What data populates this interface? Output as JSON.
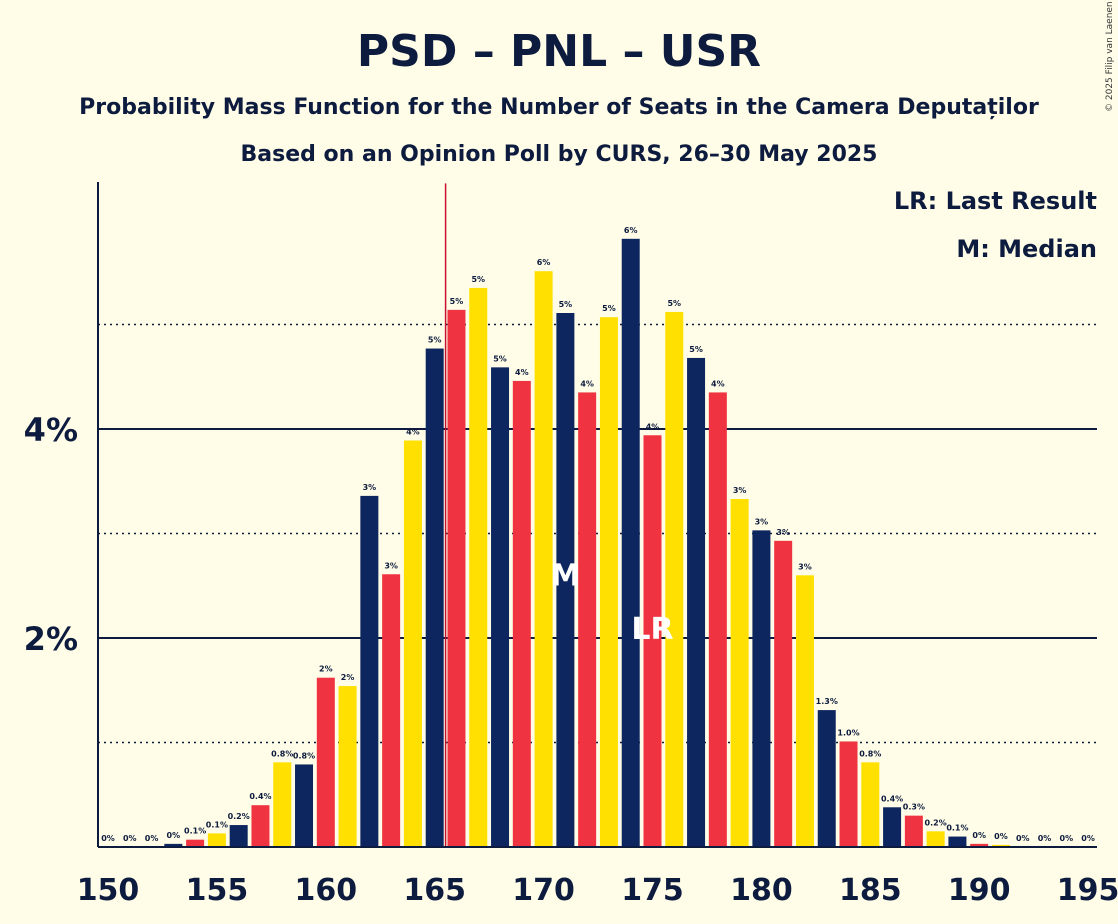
{
  "copyright": "© 2025 Filip van Laenen",
  "chart_data": {
    "type": "bar",
    "title": "PSD – PNL – USR",
    "subtitle": "Probability Mass Function for the Number of Seats in the Camera Deputaților",
    "subtitle2": "Based on an Opinion Poll by CURS, 26–30 May 2025",
    "xlabel": "",
    "ylabel": "",
    "x_range": [
      150,
      195
    ],
    "ylim": [
      0,
      6.35
    ],
    "x_ticks": [
      150,
      155,
      160,
      165,
      170,
      175,
      180,
      185,
      190,
      195
    ],
    "x_tick_labels": [
      "150",
      "155",
      "160",
      "165",
      "170",
      "175",
      "180",
      "185",
      "190",
      "195"
    ],
    "y_ticks": [
      2,
      4
    ],
    "y_tick_labels": [
      "2%",
      "4%"
    ],
    "y_dotted": [
      1,
      3,
      5
    ],
    "grid": true,
    "colors": [
      "#0D2660",
      "#EF3340",
      "#FFE000"
    ],
    "last_result_line": {
      "seats": 165.5,
      "color": "#C8102E"
    },
    "legend": {
      "position": "top-right",
      "entries": [
        "LR: Last Result",
        "M: Median"
      ]
    },
    "median": {
      "seats": 171,
      "label": "M"
    },
    "last_result": {
      "seats": 175,
      "label": "LR"
    },
    "bars": [
      {
        "seats": 150,
        "value": 0.0,
        "label": "0%"
      },
      {
        "seats": 151,
        "value": 0.0,
        "label": "0%"
      },
      {
        "seats": 152,
        "value": 0.0,
        "label": "0%"
      },
      {
        "seats": 153,
        "value": 0.03,
        "label": "0%"
      },
      {
        "seats": 154,
        "value": 0.07,
        "label": "0.1%"
      },
      {
        "seats": 155,
        "value": 0.13,
        "label": "0.1%"
      },
      {
        "seats": 156,
        "value": 0.21,
        "label": "0.2%"
      },
      {
        "seats": 157,
        "value": 0.4,
        "label": "0.4%"
      },
      {
        "seats": 158,
        "value": 0.81,
        "label": "0.8%"
      },
      {
        "seats": 159,
        "value": 0.79,
        "label": "0.8%"
      },
      {
        "seats": 160,
        "value": 1.62,
        "label": "2%"
      },
      {
        "seats": 161,
        "value": 1.54,
        "label": "2%"
      },
      {
        "seats": 162,
        "value": 3.36,
        "label": "3%"
      },
      {
        "seats": 163,
        "value": 2.61,
        "label": "3%"
      },
      {
        "seats": 164,
        "value": 3.89,
        "label": "4%"
      },
      {
        "seats": 165,
        "value": 4.77,
        "label": "5%"
      },
      {
        "seats": 166,
        "value": 5.14,
        "label": "5%"
      },
      {
        "seats": 167,
        "value": 5.35,
        "label": "5%"
      },
      {
        "seats": 168,
        "value": 4.59,
        "label": "5%"
      },
      {
        "seats": 169,
        "value": 4.46,
        "label": "4%"
      },
      {
        "seats": 170,
        "value": 5.51,
        "label": "6%"
      },
      {
        "seats": 171,
        "value": 5.11,
        "label": "5%"
      },
      {
        "seats": 172,
        "value": 4.35,
        "label": "4%"
      },
      {
        "seats": 173,
        "value": 5.07,
        "label": "5%"
      },
      {
        "seats": 174,
        "value": 5.82,
        "label": "6%"
      },
      {
        "seats": 175,
        "value": 3.94,
        "label": "4%"
      },
      {
        "seats": 176,
        "value": 5.12,
        "label": "5%"
      },
      {
        "seats": 177,
        "value": 4.68,
        "label": "5%"
      },
      {
        "seats": 178,
        "value": 4.35,
        "label": "4%"
      },
      {
        "seats": 179,
        "value": 3.33,
        "label": "3%"
      },
      {
        "seats": 180,
        "value": 3.03,
        "label": "3%"
      },
      {
        "seats": 181,
        "value": 2.93,
        "label": "3%"
      },
      {
        "seats": 182,
        "value": 2.6,
        "label": "3%"
      },
      {
        "seats": 183,
        "value": 1.31,
        "label": "1.3%"
      },
      {
        "seats": 184,
        "value": 1.01,
        "label": "1.0%"
      },
      {
        "seats": 185,
        "value": 0.81,
        "label": "0.8%"
      },
      {
        "seats": 186,
        "value": 0.38,
        "label": "0.4%"
      },
      {
        "seats": 187,
        "value": 0.3,
        "label": "0.3%"
      },
      {
        "seats": 188,
        "value": 0.15,
        "label": "0.2%"
      },
      {
        "seats": 189,
        "value": 0.1,
        "label": "0.1%"
      },
      {
        "seats": 190,
        "value": 0.03,
        "label": "0%"
      },
      {
        "seats": 191,
        "value": 0.02,
        "label": "0%"
      },
      {
        "seats": 192,
        "value": 0.0,
        "label": "0%"
      },
      {
        "seats": 193,
        "value": 0.0,
        "label": "0%"
      },
      {
        "seats": 194,
        "value": 0.0,
        "label": "0%"
      },
      {
        "seats": 195,
        "value": 0.0,
        "label": "0%"
      }
    ]
  }
}
